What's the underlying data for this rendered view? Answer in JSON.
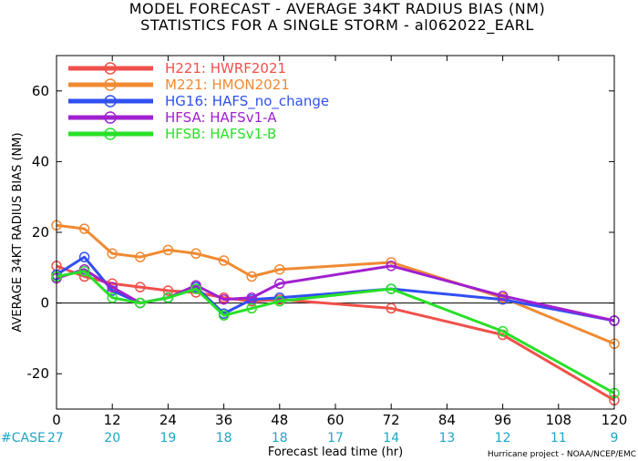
{
  "title_line1": "MODEL FORECAST - AVERAGE 34KT RADIUS BIAS (NM)",
  "title_line2": "STATISTICS FOR A SINGLE STORM - al062022_EARL",
  "credit": "Hurricane project - NOAA/NCEP/EMC",
  "case_label": "#CASE",
  "case_counts": [
    27,
    20,
    19,
    18,
    18,
    17,
    14,
    13,
    12,
    11,
    9
  ],
  "chart_data": {
    "type": "line",
    "title": "MODEL FORECAST - AVERAGE 34KT RADIUS BIAS (NM)",
    "subtitle": "STATISTICS FOR A SINGLE STORM - al062022_EARL",
    "xlabel": "Forecast lead time (hr)",
    "ylabel": "AVERAGE 34KT RADIUS BIAS (NM)",
    "xlim": [
      0,
      120
    ],
    "ylim": [
      -30,
      70
    ],
    "xticks": [
      0,
      12,
      24,
      36,
      48,
      60,
      72,
      84,
      96,
      108,
      120
    ],
    "yticks": [
      -20,
      0,
      20,
      40,
      60
    ],
    "zero_line": true,
    "legend_position": "top-left",
    "series": [
      {
        "name": "H221: HWRF2021",
        "color": "#f0504a",
        "x": [
          0,
          6,
          12,
          18,
          24,
          30,
          36,
          42,
          48,
          72,
          96,
          120
        ],
        "y": [
          10.5,
          7.5,
          5.5,
          4.5,
          3.5,
          3.0,
          1.5,
          0.5,
          1.0,
          -1.5,
          -9.0,
          -27.5
        ]
      },
      {
        "name": "M221: HMON2021",
        "color": "#f08a32",
        "x": [
          0,
          6,
          12,
          18,
          24,
          30,
          36,
          42,
          48,
          72,
          96,
          120
        ],
        "y": [
          22.0,
          21.0,
          14.0,
          13.0,
          15.0,
          14.0,
          12.0,
          7.5,
          9.5,
          11.5,
          1.5,
          -11.5
        ]
      },
      {
        "name": "HG16: HAFS_no_change",
        "color": "#3050f0",
        "x": [
          0,
          6,
          12,
          18,
          24,
          30,
          36,
          42,
          48,
          72,
          96,
          120
        ],
        "y": [
          8.0,
          13.0,
          3.5,
          0.0,
          1.5,
          4.5,
          -3.0,
          1.0,
          1.5,
          4.0,
          1.0,
          -5.0
        ]
      },
      {
        "name": "HFSA: HAFSv1-A",
        "color": "#a020d0",
        "x": [
          0,
          6,
          12,
          18,
          24,
          30,
          36,
          42,
          48,
          72,
          96,
          120
        ],
        "y": [
          7.0,
          9.5,
          4.5,
          0.0,
          1.5,
          5.0,
          1.0,
          1.5,
          5.5,
          10.5,
          2.0,
          -5.0
        ]
      },
      {
        "name": "HFSB: HAFSv1-B",
        "color": "#28e028",
        "x": [
          0,
          6,
          12,
          18,
          24,
          30,
          36,
          42,
          48,
          72,
          96,
          120
        ],
        "y": [
          7.5,
          9.0,
          1.5,
          0.0,
          1.5,
          4.0,
          -3.5,
          -1.5,
          0.5,
          4.0,
          -8.0,
          -25.5
        ]
      }
    ]
  }
}
